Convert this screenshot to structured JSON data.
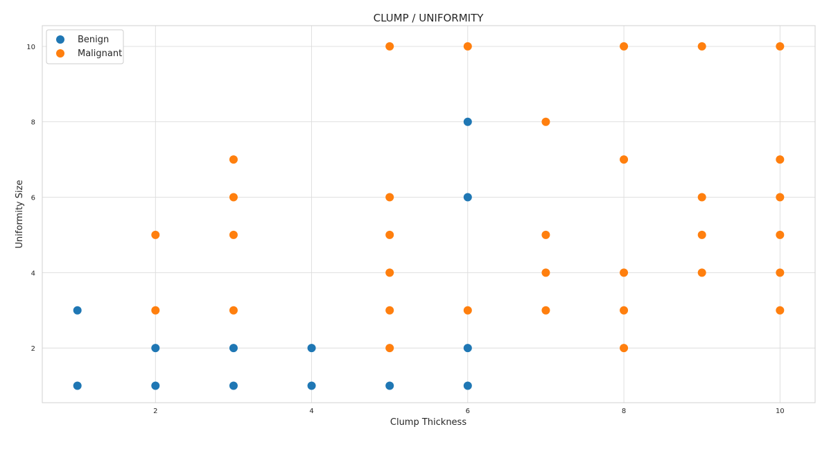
{
  "chart_data": {
    "type": "scatter",
    "title": "CLUMP / UNIFORMITY",
    "xlabel": "Clump Thickness",
    "ylabel": "Uniformity Size",
    "xlim": [
      0.55,
      10.45
    ],
    "ylim": [
      0.55,
      10.55
    ],
    "xticks": [
      2,
      4,
      6,
      8,
      10
    ],
    "yticks": [
      2,
      4,
      6,
      8,
      10
    ],
    "grid": true,
    "legend_position": "top-left",
    "series": [
      {
        "name": "Benign",
        "color": "#1f77b4",
        "points": [
          [
            1,
            1
          ],
          [
            1,
            3
          ],
          [
            2,
            1
          ],
          [
            2,
            2
          ],
          [
            3,
            1
          ],
          [
            3,
            2
          ],
          [
            4,
            1
          ],
          [
            4,
            2
          ],
          [
            5,
            1
          ],
          [
            6,
            1
          ],
          [
            6,
            2
          ],
          [
            6,
            6
          ],
          [
            6,
            8
          ]
        ]
      },
      {
        "name": "Malignant",
        "color": "#ff7f0e",
        "points": [
          [
            2,
            3
          ],
          [
            2,
            5
          ],
          [
            3,
            3
          ],
          [
            3,
            5
          ],
          [
            3,
            6
          ],
          [
            3,
            7
          ],
          [
            5,
            2
          ],
          [
            5,
            3
          ],
          [
            5,
            4
          ],
          [
            5,
            5
          ],
          [
            5,
            6
          ],
          [
            5,
            10
          ],
          [
            6,
            3
          ],
          [
            6,
            10
          ],
          [
            7,
            3
          ],
          [
            7,
            4
          ],
          [
            7,
            5
          ],
          [
            7,
            8
          ],
          [
            8,
            2
          ],
          [
            8,
            3
          ],
          [
            8,
            4
          ],
          [
            8,
            7
          ],
          [
            8,
            10
          ],
          [
            9,
            4
          ],
          [
            9,
            5
          ],
          [
            9,
            6
          ],
          [
            9,
            10
          ],
          [
            10,
            3
          ],
          [
            10,
            4
          ],
          [
            10,
            5
          ],
          [
            10,
            6
          ],
          [
            10,
            7
          ],
          [
            10,
            10
          ]
        ]
      }
    ]
  }
}
